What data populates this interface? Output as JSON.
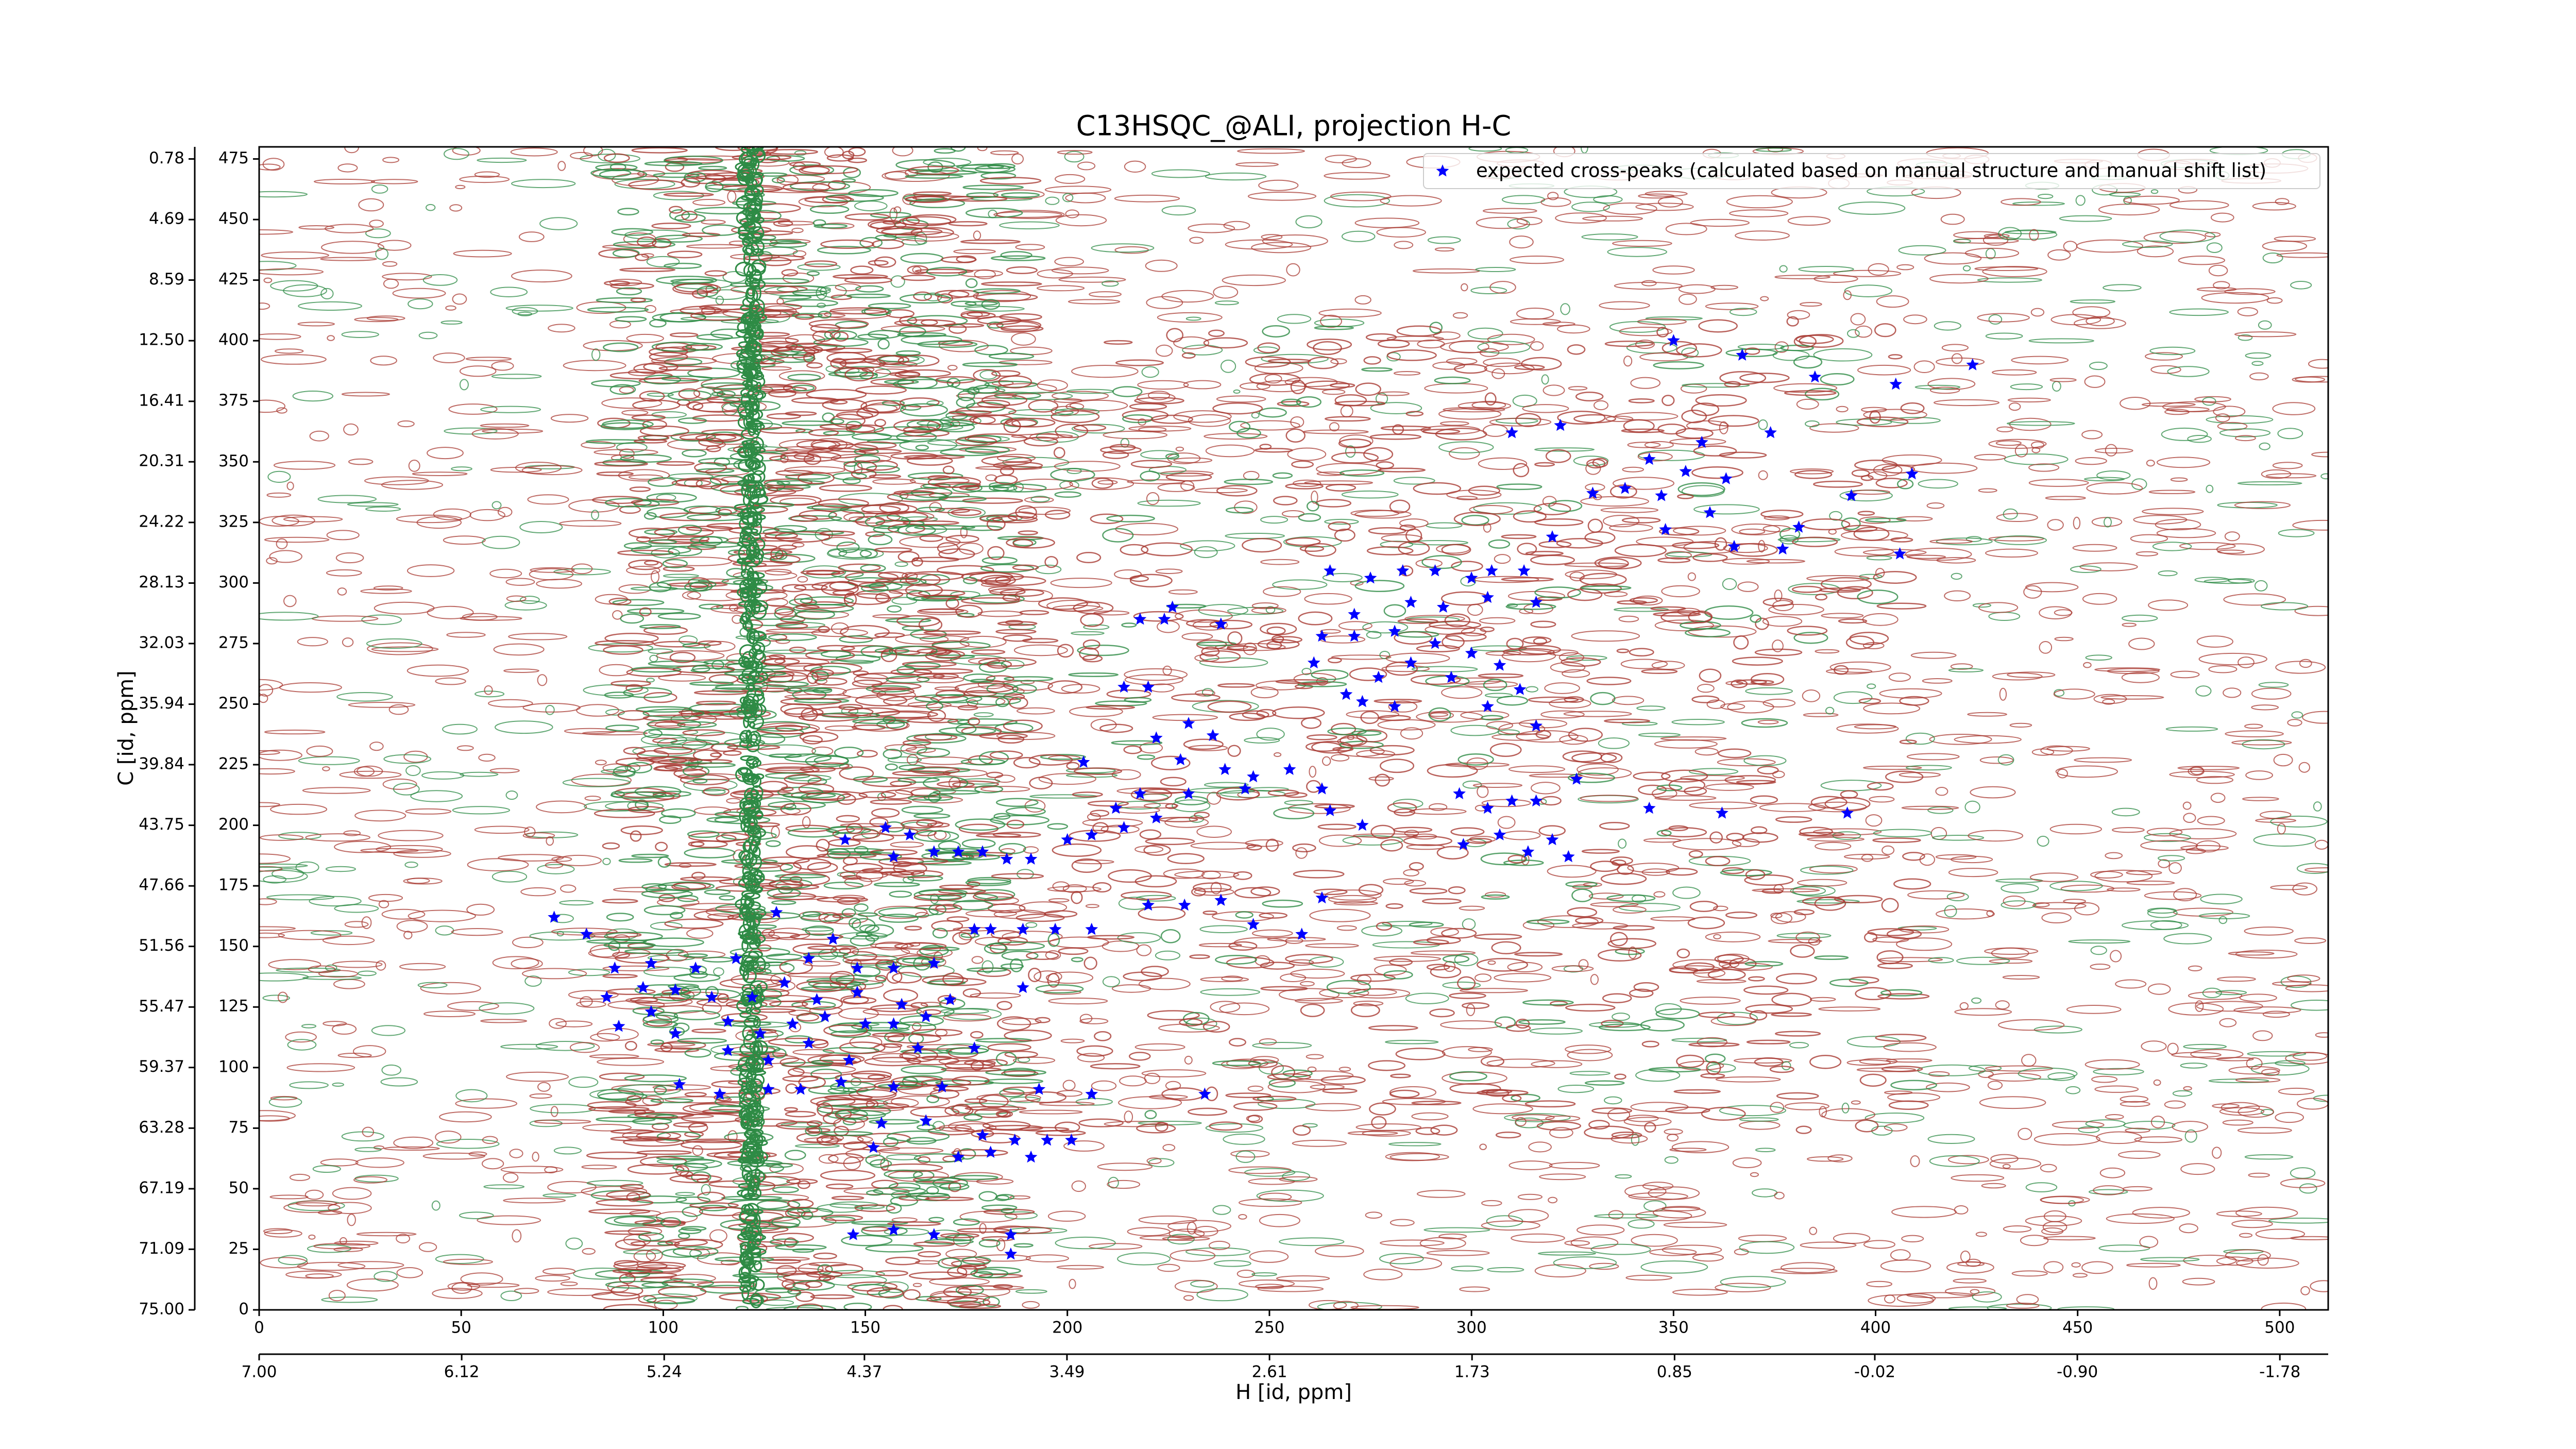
{
  "chart_data": {
    "type": "scatter",
    "title": "C13HSQC_@ALI, projection H-C",
    "xlabel": "H [id, ppm]",
    "ylabel": "C [id, ppm]",
    "xlim": [
      0,
      512
    ],
    "ylim": [
      0,
      480
    ],
    "xticks": [
      0,
      50,
      100,
      150,
      200,
      250,
      300,
      350,
      400,
      450,
      500
    ],
    "yticks": [
      0,
      25,
      50,
      75,
      100,
      125,
      150,
      175,
      200,
      225,
      250,
      275,
      300,
      325,
      350,
      375,
      400,
      425,
      450,
      475
    ],
    "x2lim": [
      7.0,
      -1.99
    ],
    "x2ticks": [
      {
        "value": 7,
        "label": "7.00"
      },
      6.12,
      5.24,
      4.37,
      3.49,
      2.61,
      1.73,
      0.85,
      -0.02,
      {
        "value": -0.9,
        "label": "-0.90"
      },
      -1.78
    ],
    "y2lim": [
      75.0,
      0.0
    ],
    "y2ticks": [
      {
        "value": 75,
        "label": "75.00"
      },
      71.09,
      67.19,
      63.28,
      59.37,
      55.47,
      51.56,
      47.66,
      43.75,
      39.84,
      35.94,
      32.03,
      28.13,
      24.22,
      20.31,
      16.41,
      {
        "value": 12.5,
        "label": "12.50"
      },
      8.59,
      4.69,
      0.78
    ],
    "legend": "upper right",
    "series": [
      {
        "name": "expected cross-peaks (calculated based on manual structure and manual shift list)",
        "color": "#0000ff",
        "x": [
          350,
          367,
          385,
          405,
          424,
          322,
          310,
          357,
          374,
          344,
          353,
          363,
          330,
          338,
          347,
          409,
          394,
          381,
          359,
          348,
          365,
          406,
          377,
          320,
          313,
          305,
          300,
          291,
          283,
          275,
          265,
          316,
          304,
          293,
          285,
          271,
          263,
          271,
          281,
          291,
          300,
          307,
          285,
          277,
          269,
          261,
          273,
          281,
          295,
          304,
          316,
          312,
          224,
          218,
          238,
          226,
          214,
          220,
          230,
          236,
          222,
          228,
          239,
          246,
          255,
          263,
          244,
          230,
          218,
          212,
          222,
          204,
          297,
          304,
          310,
          316,
          326,
          344,
          362,
          393,
          307,
          314,
          324,
          320,
          298,
          273,
          265,
          145,
          155,
          161,
          157,
          167,
          173,
          179,
          185,
          191,
          200,
          206,
          214,
          220,
          229,
          238,
          246,
          263,
          258,
          181,
          189,
          197,
          206,
          177,
          73,
          81,
          88,
          97,
          108,
          118,
          128,
          136,
          142,
          148,
          157,
          167,
          86,
          95,
          103,
          112,
          122,
          130,
          138,
          148,
          159,
          171,
          189,
          89,
          97,
          103,
          116,
          124,
          132,
          140,
          150,
          157,
          165,
          116,
          126,
          136,
          146,
          163,
          177,
          104,
          114,
          126,
          134,
          144,
          157,
          169,
          193,
          206,
          234,
          154,
          165,
          179,
          187,
          195,
          201,
          152,
          181,
          191,
          173,
          147,
          157,
          167,
          186,
          186
        ],
        "y": [
          400,
          394,
          385,
          382,
          390,
          365,
          362,
          358,
          362,
          351,
          346,
          343,
          337,
          339,
          336,
          345,
          336,
          323,
          329,
          322,
          315,
          312,
          314,
          319,
          305,
          305,
          302,
          305,
          305,
          302,
          305,
          292,
          294,
          290,
          292,
          287,
          278,
          278,
          280,
          275,
          271,
          266,
          267,
          261,
          254,
          267,
          251,
          249,
          261,
          249,
          241,
          256,
          285,
          285,
          283,
          290,
          257,
          257,
          242,
          237,
          236,
          227,
          223,
          220,
          223,
          215,
          215,
          213,
          213,
          207,
          203,
          226,
          213,
          207,
          210,
          210,
          219,
          207,
          205,
          205,
          196,
          189,
          187,
          194,
          192,
          200,
          206,
          194,
          199,
          196,
          187,
          189,
          189,
          189,
          186,
          186,
          194,
          196,
          199,
          167,
          167,
          169,
          159,
          170,
          155,
          157,
          157,
          157,
          157,
          157,
          162,
          155,
          141,
          143,
          141,
          145,
          164,
          145,
          153,
          141,
          141,
          143,
          129,
          133,
          132,
          129,
          129,
          135,
          128,
          131,
          126,
          128,
          133,
          117,
          123,
          114,
          119,
          114,
          118,
          121,
          118,
          118,
          121,
          107,
          103,
          110,
          103,
          108,
          108,
          93,
          89,
          91,
          91,
          94,
          92,
          92,
          91,
          89,
          89,
          77,
          78,
          72,
          70,
          70,
          70,
          67,
          65,
          63,
          63,
          31,
          33,
          31,
          31,
          23
        ]
      }
    ]
  }
}
